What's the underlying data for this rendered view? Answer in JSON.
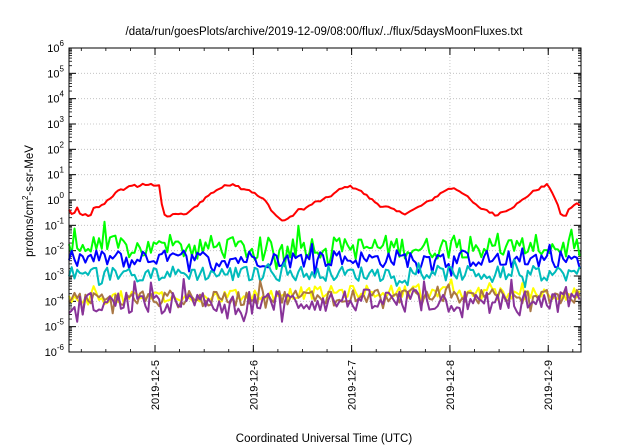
{
  "chart_data": {
    "type": "line",
    "title": "/data/run/goesPlots/archive/2019-12-09/08:00/flux/../flux/5daysMoonFluxes.txt",
    "xlabel": "Coordinated Universal Time (UTC)",
    "ylabel": {
      "base": "protons/cm",
      "sup": "2",
      "tail": "-s-sr-MeV"
    },
    "y_scale": "log",
    "ylim": [
      1e-06,
      1000000.0
    ],
    "y_ticks": [
      {
        "value": 1e-06,
        "base": "10",
        "exp": "-6"
      },
      {
        "value": 1e-05,
        "base": "10",
        "exp": "-5"
      },
      {
        "value": 0.0001,
        "base": "10",
        "exp": "-4"
      },
      {
        "value": 0.001,
        "base": "10",
        "exp": "-3"
      },
      {
        "value": 0.01,
        "base": "10",
        "exp": "-2"
      },
      {
        "value": 0.1,
        "base": "10",
        "exp": "-1"
      },
      {
        "value": 1,
        "base": "10",
        "exp": "0"
      },
      {
        "value": 10,
        "base": "10",
        "exp": "1"
      },
      {
        "value": 100,
        "base": "10",
        "exp": "2"
      },
      {
        "value": 1000.0,
        "base": "10",
        "exp": "3"
      },
      {
        "value": 10000.0,
        "base": "10",
        "exp": "4"
      },
      {
        "value": 100000.0,
        "base": "10",
        "exp": "5"
      },
      {
        "value": 1000000.0,
        "base": "10",
        "exp": "6"
      }
    ],
    "xlim": [
      "2019-12-04T03:00",
      "2019-12-09T08:00"
    ],
    "x_ticks": [
      "2019-12-5",
      "2019-12-6",
      "2019-12-7",
      "2019-12-8",
      "2019-12-9"
    ],
    "x_tick_dates": [
      "2019-12-05T00:00",
      "2019-12-06T00:00",
      "2019-12-07T00:00",
      "2019-12-08T00:00",
      "2019-12-09T00:00"
    ],
    "grid": true,
    "legend": "none",
    "series": [
      {
        "color": "#ff0000",
        "width": 2,
        "noise": 0.05,
        "points": [
          [
            "2019-12-04T03:00",
            0.4
          ],
          [
            "2019-12-04T04:00",
            0.25
          ],
          [
            "2019-12-04T05:00",
            0.45
          ],
          [
            "2019-12-04T06:00",
            0.22
          ],
          [
            "2019-12-04T07:00",
            0.3
          ],
          [
            "2019-12-04T08:00",
            0.18
          ],
          [
            "2019-12-04T09:00",
            0.45
          ],
          [
            "2019-12-04T11:00",
            0.6
          ],
          [
            "2019-12-04T13:00",
            1.2
          ],
          [
            "2019-12-04T15:00",
            2.2
          ],
          [
            "2019-12-04T17:00",
            3.0
          ],
          [
            "2019-12-04T19:00",
            4.2
          ],
          [
            "2019-12-04T20:00",
            3.0
          ],
          [
            "2019-12-04T21:00",
            4.0
          ],
          [
            "2019-12-05T00:00",
            4.0
          ],
          [
            "2019-12-05T01:00",
            4.0
          ],
          [
            "2019-12-05T02:00",
            0.3
          ],
          [
            "2019-12-05T03:00",
            0.2
          ],
          [
            "2019-12-05T05:00",
            0.3
          ],
          [
            "2019-12-05T07:00",
            0.25
          ],
          [
            "2019-12-05T09:00",
            0.4
          ],
          [
            "2019-12-05T11:00",
            0.8
          ],
          [
            "2019-12-05T13:00",
            1.5
          ],
          [
            "2019-12-05T15:00",
            2.5
          ],
          [
            "2019-12-05T17:00",
            3.5
          ],
          [
            "2019-12-05T19:00",
            4.5
          ],
          [
            "2019-12-05T21:00",
            3.0
          ],
          [
            "2019-12-05T23:00",
            2.5
          ],
          [
            "2019-12-06T01:00",
            1.5
          ],
          [
            "2019-12-06T03:00",
            0.9
          ],
          [
            "2019-12-06T05:00",
            0.3
          ],
          [
            "2019-12-06T07:00",
            0.15
          ],
          [
            "2019-12-06T09:00",
            0.2
          ],
          [
            "2019-12-06T11:00",
            0.4
          ],
          [
            "2019-12-06T13:00",
            0.5
          ],
          [
            "2019-12-06T15:00",
            0.8
          ],
          [
            "2019-12-06T17:00",
            1.0
          ],
          [
            "2019-12-06T19:00",
            1.5
          ],
          [
            "2019-12-06T21:00",
            2.5
          ],
          [
            "2019-12-06T23:00",
            3.5
          ],
          [
            "2019-12-07T01:00",
            3.0
          ],
          [
            "2019-12-07T03:00",
            1.8
          ],
          [
            "2019-12-07T05:00",
            1.0
          ],
          [
            "2019-12-07T07:00",
            0.6
          ],
          [
            "2019-12-07T09:00",
            0.5
          ],
          [
            "2019-12-07T11:00",
            0.35
          ],
          [
            "2019-12-07T13:00",
            0.3
          ],
          [
            "2019-12-07T15:00",
            0.4
          ],
          [
            "2019-12-07T17:00",
            0.6
          ],
          [
            "2019-12-07T19:00",
            0.9
          ],
          [
            "2019-12-07T21:00",
            1.5
          ],
          [
            "2019-12-07T23:00",
            2.5
          ],
          [
            "2019-12-08T01:00",
            3.0
          ],
          [
            "2019-12-08T03:00",
            2.0
          ],
          [
            "2019-12-08T05:00",
            1.0
          ],
          [
            "2019-12-08T07:00",
            0.5
          ],
          [
            "2019-12-08T09:00",
            0.4
          ],
          [
            "2019-12-08T11:00",
            0.25
          ],
          [
            "2019-12-08T13:00",
            0.35
          ],
          [
            "2019-12-08T15:00",
            0.5
          ],
          [
            "2019-12-08T17:00",
            0.8
          ],
          [
            "2019-12-08T19:00",
            1.5
          ],
          [
            "2019-12-08T21:00",
            2.5
          ],
          [
            "2019-12-08T23:00",
            3.5
          ],
          [
            "2019-12-09T00:00",
            4.0
          ],
          [
            "2019-12-09T01:00",
            2.0
          ],
          [
            "2019-12-09T02:00",
            0.8
          ],
          [
            "2019-12-09T03:00",
            0.3
          ],
          [
            "2019-12-09T04:00",
            0.2
          ],
          [
            "2019-12-09T05:00",
            0.4
          ],
          [
            "2019-12-09T06:00",
            0.6
          ],
          [
            "2019-12-09T07:00",
            0.7
          ],
          [
            "2019-12-09T08:00",
            0.6
          ]
        ]
      },
      {
        "color": "#00ff00",
        "width": 2,
        "noise": 0.45,
        "points": [
          [
            "2019-12-04T03:00",
            0.012
          ],
          [
            "2019-12-04T12:00",
            0.015
          ],
          [
            "2019-12-04T21:00",
            0.012
          ],
          [
            "2019-12-05T03:00",
            0.012
          ],
          [
            "2019-12-05T12:00",
            0.015
          ],
          [
            "2019-12-05T21:00",
            0.012
          ],
          [
            "2019-12-06T06:00",
            0.012
          ],
          [
            "2019-12-06T15:00",
            0.015
          ],
          [
            "2019-12-07T00:00",
            0.012
          ],
          [
            "2019-12-07T09:00",
            0.015
          ],
          [
            "2019-12-07T18:00",
            0.012
          ],
          [
            "2019-12-08T03:00",
            0.015
          ],
          [
            "2019-12-08T12:00",
            0.012
          ],
          [
            "2019-12-08T21:00",
            0.015
          ],
          [
            "2019-12-09T08:00",
            0.012
          ]
        ]
      },
      {
        "color": "#0000ff",
        "width": 2,
        "noise": 0.35,
        "points": [
          [
            "2019-12-04T03:00",
            0.0045
          ],
          [
            "2019-12-04T12:00",
            0.005
          ],
          [
            "2019-12-04T21:00",
            0.0045
          ],
          [
            "2019-12-05T06:00",
            0.005
          ],
          [
            "2019-12-05T15:00",
            0.0045
          ],
          [
            "2019-12-06T00:00",
            0.005
          ],
          [
            "2019-12-06T09:00",
            0.0045
          ],
          [
            "2019-12-06T18:00",
            0.005
          ],
          [
            "2019-12-07T03:00",
            0.0045
          ],
          [
            "2019-12-07T12:00",
            0.005
          ],
          [
            "2019-12-07T21:00",
            0.0045
          ],
          [
            "2019-12-08T06:00",
            0.005
          ],
          [
            "2019-12-08T15:00",
            0.0045
          ],
          [
            "2019-12-09T00:00",
            0.005
          ],
          [
            "2019-12-09T08:00",
            0.0045
          ]
        ]
      },
      {
        "color": "#00bbbb",
        "width": 2,
        "noise": 0.3,
        "points": [
          [
            "2019-12-04T03:00",
            0.0012
          ],
          [
            "2019-12-04T18:00",
            0.0012
          ],
          [
            "2019-12-05T09:00",
            0.0013
          ],
          [
            "2019-12-06T00:00",
            0.0012
          ],
          [
            "2019-12-06T15:00",
            0.0013
          ],
          [
            "2019-12-07T06:00",
            0.0012
          ],
          [
            "2019-12-07T21:00",
            0.0013
          ],
          [
            "2019-12-08T12:00",
            0.0012
          ],
          [
            "2019-12-09T08:00",
            0.0013
          ]
        ]
      },
      {
        "color": "#ffff00",
        "width": 2,
        "noise": 0.25,
        "points": [
          [
            "2019-12-04T03:00",
            0.00012
          ],
          [
            "2019-12-04T18:00",
            0.00015
          ],
          [
            "2019-12-05T09:00",
            0.00013
          ],
          [
            "2019-12-06T00:00",
            0.00018
          ],
          [
            "2019-12-06T15:00",
            0.00022
          ],
          [
            "2019-12-07T06:00",
            0.00025
          ],
          [
            "2019-12-07T21:00",
            0.00022
          ],
          [
            "2019-12-08T12:00",
            0.0002
          ],
          [
            "2019-12-09T08:00",
            0.0002
          ]
        ]
      },
      {
        "color": "#aa7744",
        "width": 2,
        "noise": 0.3,
        "points": [
          [
            "2019-12-04T03:00",
            0.00011
          ],
          [
            "2019-12-04T18:00",
            0.00012
          ],
          [
            "2019-12-05T09:00",
            0.00011
          ],
          [
            "2019-12-06T00:00",
            0.00014
          ],
          [
            "2019-12-06T15:00",
            0.00016
          ],
          [
            "2019-12-07T06:00",
            0.00018
          ],
          [
            "2019-12-07T21:00",
            0.00016
          ],
          [
            "2019-12-08T12:00",
            0.00015
          ],
          [
            "2019-12-09T08:00",
            0.00015
          ]
        ]
      },
      {
        "color": "#883399",
        "width": 2,
        "noise": 0.45,
        "points": [
          [
            "2019-12-04T03:00",
            8e-05
          ],
          [
            "2019-12-04T18:00",
            9e-05
          ],
          [
            "2019-12-05T09:00",
            8e-05
          ],
          [
            "2019-12-06T00:00",
            9e-05
          ],
          [
            "2019-12-06T15:00",
            0.0001
          ],
          [
            "2019-12-07T06:00",
            0.00011
          ],
          [
            "2019-12-07T21:00",
            0.0001
          ],
          [
            "2019-12-08T12:00",
            9e-05
          ],
          [
            "2019-12-09T08:00",
            9e-05
          ]
        ]
      }
    ]
  }
}
